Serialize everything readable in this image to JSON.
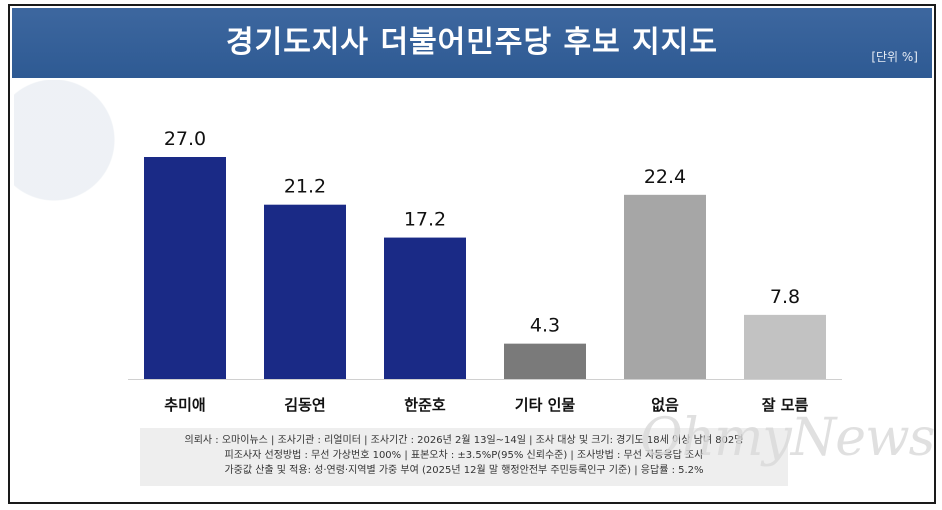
{
  "header": {
    "title": "경기도지사 더불어민주당 후보 지지도",
    "unit": "[단위 %]"
  },
  "chart_data": {
    "type": "bar",
    "title": "경기도지사 더불어민주당 후보 지지도",
    "categories": [
      "추미애",
      "김동연",
      "한준호",
      "기타 인물",
      "없음",
      "잘 모름"
    ],
    "values": [
      27.0,
      21.2,
      17.2,
      4.3,
      22.4,
      7.8
    ],
    "value_labels": [
      "27.0",
      "21.2",
      "17.2",
      "4.3",
      "22.4",
      "7.8"
    ],
    "colors": [
      "#1a2a86",
      "#1a2a86",
      "#1a2a86",
      "#7a7a7a",
      "#a6a6a6",
      "#c2c2c2"
    ],
    "ylim": [
      0,
      27.0
    ],
    "grid": false,
    "legend": "none"
  },
  "footnote": {
    "line1": "의뢰사 : 오마이뉴스 | 조사기관 : 리얼미터 | 조사기간 : 2026년 2월 13일~14일 | 조사 대상 및 크기: 경기도 18세 이상 남녀 802명",
    "line2": "피조사자 선정방법 : 무선 가상번호 100% | 표본오차 : ±3.5%P(95% 신뢰수준) | 조사방법 : 무선 자동응답 조사",
    "line3": "가중값 산출 및 적용: 성·연령·지역별 가중 부여 (2025년 12월 말 행정안전부 주민등록인구 기준) | 응답률 : 5.2%"
  },
  "watermark": "OhmyNews"
}
